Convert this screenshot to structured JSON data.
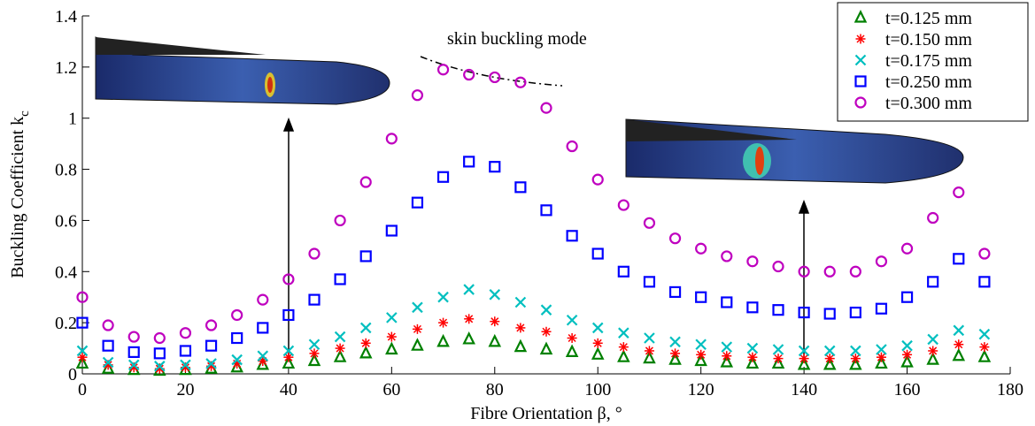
{
  "chart_data": {
    "type": "scatter",
    "x_label": "Fibre Orientation β, °",
    "y_label": "Buckling Coefficient k",
    "y_label_subscript": "c",
    "annotation": "skin buckling mode",
    "xlim": [
      0,
      180
    ],
    "xticks": [
      0,
      20,
      40,
      60,
      80,
      100,
      120,
      140,
      160,
      180
    ],
    "ylim": [
      0,
      1.4
    ],
    "yticks": [
      0,
      0.2,
      0.4,
      0.6,
      0.8,
      1,
      1.2,
      1.4
    ],
    "legend": "top-right",
    "x": [
      0,
      5,
      10,
      15,
      20,
      25,
      30,
      35,
      40,
      45,
      50,
      55,
      60,
      65,
      70,
      75,
      80,
      85,
      90,
      95,
      100,
      105,
      110,
      115,
      120,
      125,
      130,
      135,
      140,
      145,
      150,
      155,
      160,
      165,
      170,
      175
    ],
    "series": [
      {
        "name": "t=0.125 mm",
        "color": "#008000",
        "marker": "triangle",
        "values": [
          0.04,
          0.02,
          0.015,
          0.012,
          0.015,
          0.02,
          0.025,
          0.035,
          0.04,
          0.05,
          0.065,
          0.08,
          0.095,
          0.11,
          0.125,
          0.135,
          0.125,
          0.105,
          0.095,
          0.085,
          0.075,
          0.065,
          0.06,
          0.055,
          0.05,
          0.045,
          0.04,
          0.04,
          0.035,
          0.035,
          0.035,
          0.04,
          0.045,
          0.055,
          0.07,
          0.065
        ]
      },
      {
        "name": "t=0.150 mm",
        "color": "#ff0000",
        "marker": "asterisk",
        "values": [
          0.065,
          0.035,
          0.025,
          0.02,
          0.025,
          0.03,
          0.04,
          0.05,
          0.065,
          0.08,
          0.1,
          0.12,
          0.145,
          0.175,
          0.2,
          0.215,
          0.205,
          0.18,
          0.165,
          0.14,
          0.12,
          0.105,
          0.09,
          0.08,
          0.075,
          0.07,
          0.065,
          0.06,
          0.06,
          0.06,
          0.06,
          0.065,
          0.075,
          0.09,
          0.115,
          0.105
        ]
      },
      {
        "name": "t=0.175 mm",
        "color": "#00bfbf",
        "marker": "x",
        "values": [
          0.09,
          0.045,
          0.035,
          0.03,
          0.035,
          0.04,
          0.055,
          0.07,
          0.09,
          0.115,
          0.145,
          0.18,
          0.22,
          0.26,
          0.3,
          0.33,
          0.31,
          0.28,
          0.25,
          0.21,
          0.18,
          0.16,
          0.14,
          0.125,
          0.115,
          0.105,
          0.1,
          0.095,
          0.09,
          0.09,
          0.09,
          0.095,
          0.11,
          0.135,
          0.17,
          0.155
        ]
      },
      {
        "name": "t=0.250 mm",
        "color": "#0000ff",
        "marker": "square",
        "values": [
          0.2,
          0.11,
          0.085,
          0.08,
          0.09,
          0.11,
          0.14,
          0.18,
          0.23,
          0.29,
          0.37,
          0.46,
          0.56,
          0.67,
          0.77,
          0.83,
          0.81,
          0.73,
          0.64,
          0.54,
          0.47,
          0.4,
          0.36,
          0.32,
          0.3,
          0.28,
          0.26,
          0.25,
          0.24,
          0.235,
          0.24,
          0.255,
          0.3,
          0.36,
          0.45,
          0.36
        ]
      },
      {
        "name": "t=0.300 mm",
        "color": "#bf00bf",
        "marker": "circle",
        "values": [
          0.3,
          0.19,
          0.145,
          0.14,
          0.16,
          0.19,
          0.23,
          0.29,
          0.37,
          0.47,
          0.6,
          0.75,
          0.92,
          1.09,
          1.19,
          1.17,
          1.16,
          1.14,
          1.04,
          0.89,
          0.76,
          0.66,
          0.59,
          0.53,
          0.49,
          0.46,
          0.44,
          0.42,
          0.4,
          0.4,
          0.4,
          0.44,
          0.49,
          0.61,
          0.71,
          0.47
        ]
      }
    ]
  }
}
